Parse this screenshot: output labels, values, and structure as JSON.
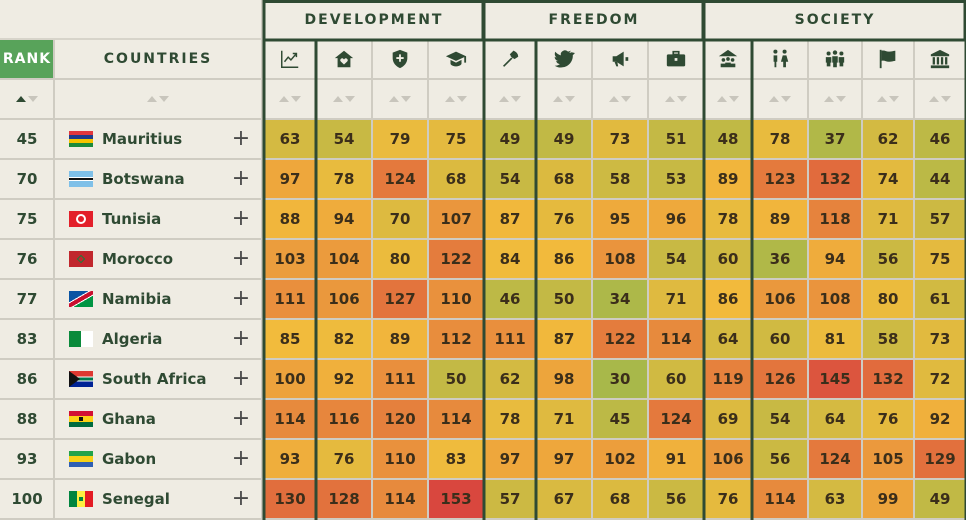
{
  "groups": [
    {
      "label": "DEVELOPMENT"
    },
    {
      "label": "FREEDOM"
    },
    {
      "label": "SOCIETY"
    }
  ],
  "header": {
    "rank": "RANK",
    "countries": "COUNTRIES"
  },
  "icons": [
    "trend-chart-icon",
    "house-heart-icon",
    "health-shield-icon",
    "graduation-cap-icon",
    "torch-icon",
    "bird-icon",
    "megaphone-icon",
    "briefcase-icon",
    "community-icon",
    "gender-equality-icon",
    "family-group-icon",
    "flag-icon",
    "government-building-icon"
  ],
  "colors": {
    "header_bg": "#efece3",
    "rank_header": "#58a35a",
    "grid_dark": "#2f4a33",
    "good": "#a8b84a",
    "mid": "#f2bb3c",
    "bad": "#d9473e"
  },
  "rows": [
    {
      "rank": "45",
      "country": "Mauritius",
      "flag": "mauritius",
      "scores": [
        63,
        54,
        79,
        75,
        49,
        49,
        73,
        51,
        48,
        78,
        37,
        62,
        46
      ]
    },
    {
      "rank": "70",
      "country": "Botswana",
      "flag": "botswana",
      "scores": [
        97,
        78,
        124,
        68,
        54,
        68,
        58,
        53,
        89,
        123,
        132,
        74,
        44
      ]
    },
    {
      "rank": "75",
      "country": "Tunisia",
      "flag": "tunisia",
      "scores": [
        88,
        94,
        70,
        107,
        87,
        76,
        95,
        96,
        78,
        89,
        118,
        71,
        57
      ]
    },
    {
      "rank": "76",
      "country": "Morocco",
      "flag": "morocco",
      "scores": [
        103,
        104,
        80,
        122,
        84,
        86,
        108,
        54,
        60,
        36,
        94,
        56,
        75
      ]
    },
    {
      "rank": "77",
      "country": "Namibia",
      "flag": "namibia",
      "scores": [
        111,
        106,
        127,
        110,
        46,
        50,
        34,
        71,
        86,
        106,
        108,
        80,
        61
      ]
    },
    {
      "rank": "83",
      "country": "Algeria",
      "flag": "algeria",
      "scores": [
        85,
        82,
        89,
        112,
        111,
        87,
        122,
        114,
        64,
        60,
        81,
        58,
        73
      ]
    },
    {
      "rank": "86",
      "country": "South Africa",
      "flag": "southafrica",
      "scores": [
        100,
        92,
        111,
        50,
        62,
        98,
        30,
        60,
        119,
        126,
        145,
        132,
        72
      ]
    },
    {
      "rank": "88",
      "country": "Ghana",
      "flag": "ghana",
      "scores": [
        114,
        116,
        120,
        114,
        78,
        71,
        45,
        124,
        69,
        54,
        64,
        76,
        92
      ]
    },
    {
      "rank": "93",
      "country": "Gabon",
      "flag": "gabon",
      "scores": [
        93,
        76,
        110,
        83,
        97,
        97,
        102,
        91,
        106,
        56,
        124,
        105,
        129
      ]
    },
    {
      "rank": "100",
      "country": "Senegal",
      "flag": "senegal",
      "scores": [
        130,
        128,
        114,
        153,
        57,
        67,
        68,
        56,
        76,
        114,
        63,
        99,
        49
      ]
    }
  ]
}
